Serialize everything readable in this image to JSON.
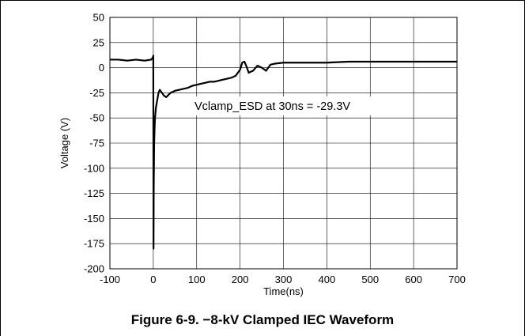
{
  "caption": "Figure 6-9. −8-kV Clamped IEC Waveform",
  "chart_data": {
    "type": "line",
    "title": "",
    "xlabel": "Time(ns)",
    "ylabel": "Voltage (V)",
    "xlim": [
      -100,
      700
    ],
    "ylim": [
      -200,
      50
    ],
    "xticks": [
      -100,
      0,
      100,
      200,
      300,
      400,
      500,
      600,
      700
    ],
    "yticks": [
      50,
      25,
      0,
      -25,
      -50,
      -75,
      -100,
      -125,
      -150,
      -175,
      -200
    ],
    "grid": true,
    "line_color": "#000000",
    "annotation": "Vclamp_ESD at 30ns = -29.3V",
    "series": [
      {
        "x": [
          -100,
          -80,
          -60,
          -40,
          -20,
          -5,
          -1,
          0,
          0.5,
          1,
          2,
          3,
          4,
          5,
          6,
          8,
          10,
          12,
          15,
          20,
          25,
          30,
          35,
          40,
          50,
          60,
          70,
          80,
          90,
          100,
          110,
          120,
          130,
          140,
          150,
          160,
          170,
          180,
          190,
          200,
          205,
          210,
          215,
          220,
          230,
          240,
          250,
          260,
          270,
          280,
          300,
          350,
          400,
          450,
          500,
          550,
          600,
          650,
          700
        ],
        "y": [
          8,
          8,
          7,
          8,
          7,
          8,
          10,
          12,
          -180,
          -120,
          -75,
          -60,
          -50,
          -45,
          -40,
          -35,
          -30,
          -25,
          -22,
          -25,
          -28,
          -29.3,
          -27,
          -25,
          -23,
          -22,
          -21,
          -20,
          -18,
          -17,
          -16,
          -15,
          -14,
          -14,
          -13,
          -12,
          -11,
          -10,
          -8,
          -2,
          5,
          6,
          1,
          -5,
          -3,
          2,
          0,
          -3,
          3,
          4,
          5,
          5,
          5,
          6,
          6,
          6,
          6,
          6,
          6
        ]
      }
    ]
  }
}
